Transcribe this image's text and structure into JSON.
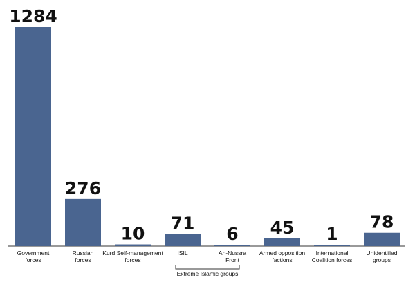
{
  "chart_data": {
    "type": "bar",
    "categories": [
      [
        "Government",
        "forces"
      ],
      [
        "Russian",
        "forces"
      ],
      [
        "Kurd Self-management",
        "forces"
      ],
      [
        "ISIL"
      ],
      [
        "An-Nussra",
        "Front"
      ],
      [
        "Armed opposition",
        "factions"
      ],
      [
        "International",
        "Coalition forces"
      ],
      [
        "Unidentified",
        "groups"
      ]
    ],
    "values": [
      1284,
      276,
      10,
      71,
      6,
      45,
      1,
      78
    ],
    "value_labels": [
      "1284",
      "276",
      "10",
      "71",
      "6",
      "45",
      "1",
      "78"
    ],
    "group_bracket": {
      "label": "Extreme Islamic groups",
      "from_index": 3,
      "to_index": 4
    },
    "title": "",
    "xlabel": "",
    "ylabel": "",
    "ylim": [
      0,
      1284
    ],
    "grid": false,
    "legend": "none",
    "bar_color": "#4a6590",
    "axis_color": "#333333"
  }
}
